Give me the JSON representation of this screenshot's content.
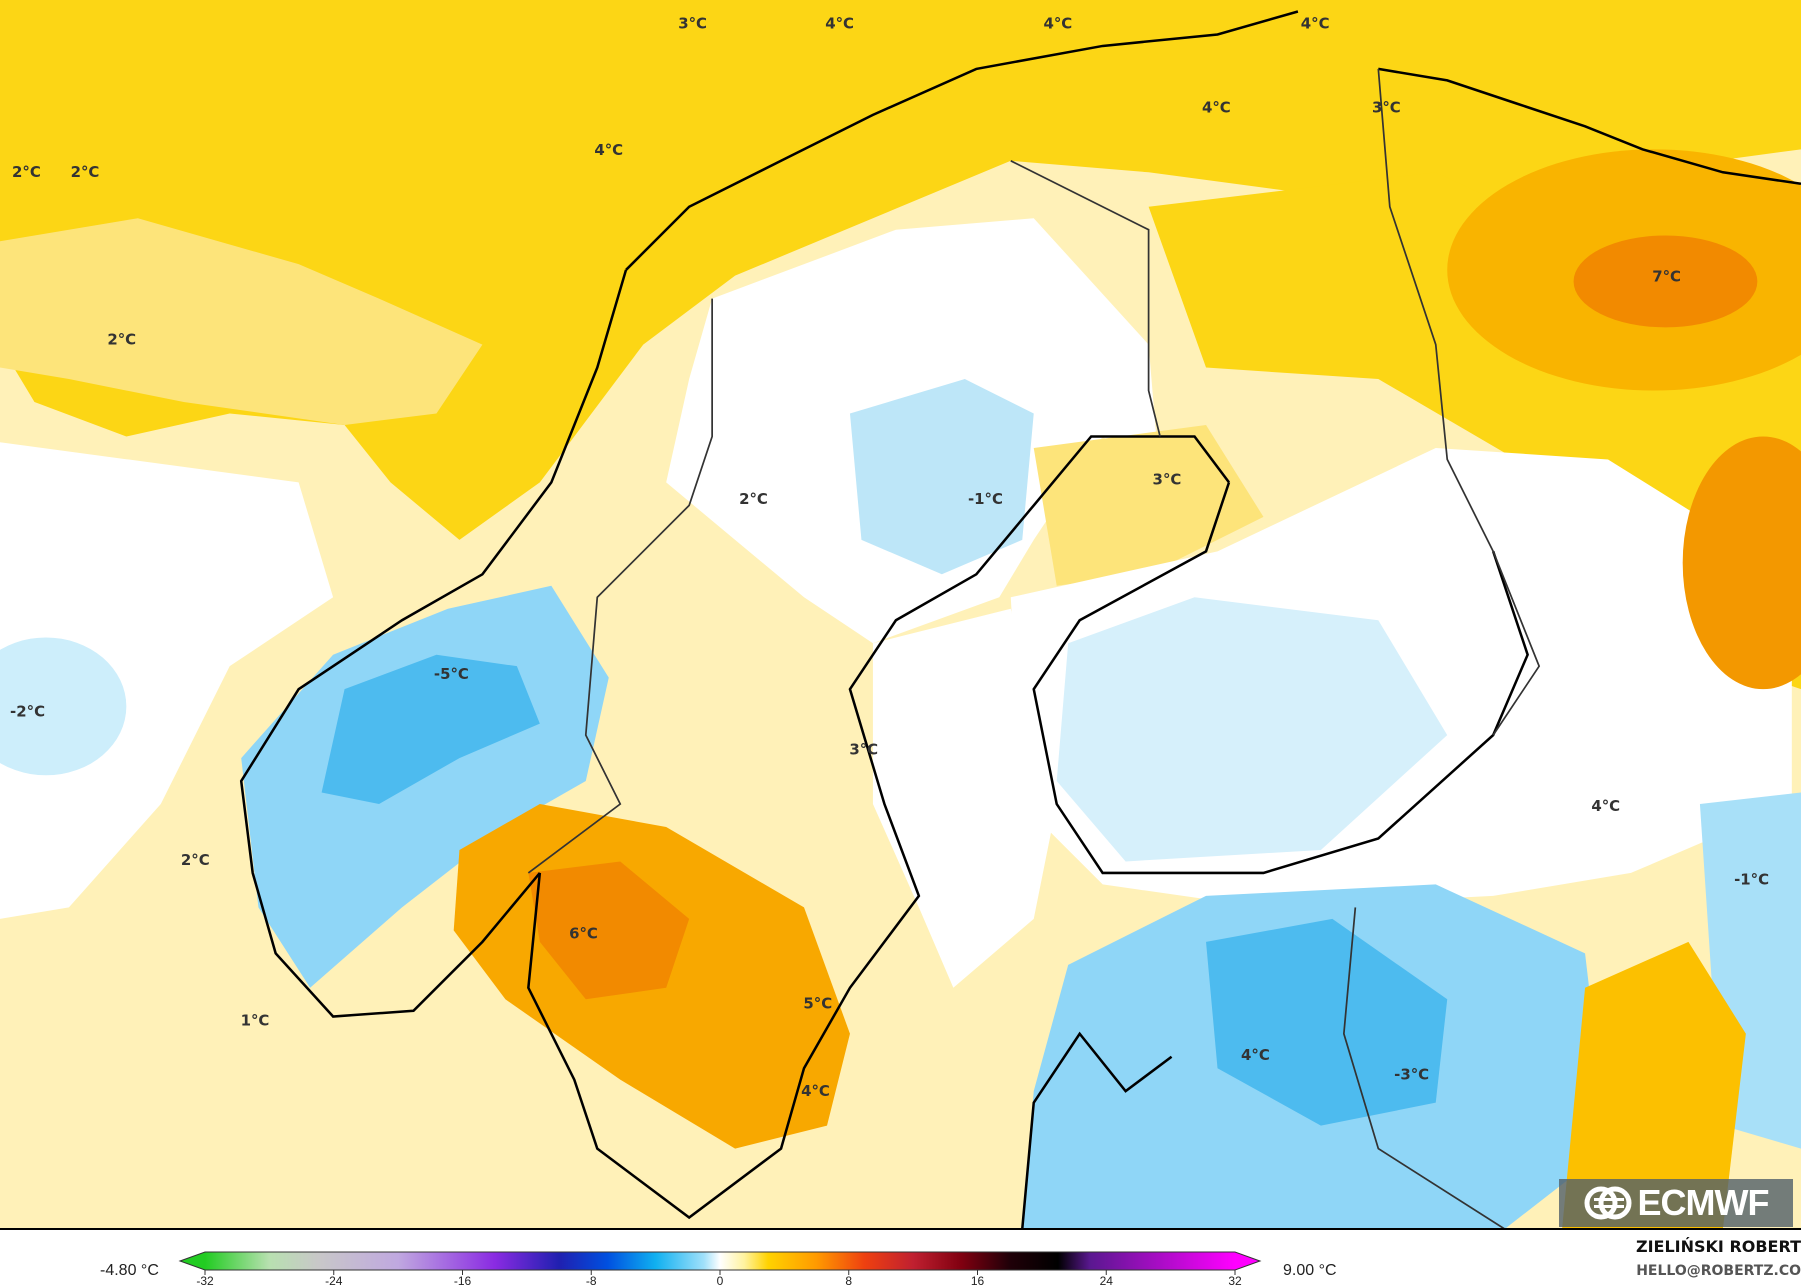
{
  "map": {
    "model": "ECMWF",
    "colors": {
      "pale_yellow": "#fff1b8",
      "yellow": "#fcd615",
      "light_yellow": "#fde47a",
      "orange": "#f8a800",
      "dark_orange": "#f28a00",
      "white": "#ffffff",
      "light_blue": "#cdeefb",
      "blue": "#7fd0f5",
      "mid_blue": "#49b8ef"
    },
    "temperature_labels": [
      {
        "text": "3°C"
      },
      {
        "text": "4°C"
      },
      {
        "text": "4°C"
      },
      {
        "text": "4°C"
      },
      {
        "text": "4°C"
      },
      {
        "text": "3°C"
      },
      {
        "text": "4°C"
      },
      {
        "text": "2°C"
      },
      {
        "text": "2°C"
      },
      {
        "text": "2°C"
      },
      {
        "text": "7°C"
      },
      {
        "text": "2°C"
      },
      {
        "text": "-1°C"
      },
      {
        "text": "3°C"
      },
      {
        "text": "-5°C"
      },
      {
        "text": "-2°C"
      },
      {
        "text": "3°C"
      },
      {
        "text": "4°C"
      },
      {
        "text": "2°C"
      },
      {
        "text": "-1°C"
      },
      {
        "text": "6°C"
      },
      {
        "text": "1°C"
      },
      {
        "text": "5°C"
      },
      {
        "text": "4°C"
      },
      {
        "text": "-3°C"
      },
      {
        "text": "4°C"
      }
    ]
  },
  "logo": {
    "text": "ECMWF",
    "icon": "ecmwf-logo-icon"
  },
  "legend": {
    "min_label": "-4.80 °C",
    "max_label": "9.00 °C",
    "ticks": [
      "-32",
      "-24",
      "-16",
      "-8",
      "0",
      "8",
      "16",
      "24",
      "32"
    ],
    "range": [
      -32,
      32
    ],
    "color_stops": [
      {
        "v": -32,
        "c": "#22cc22"
      },
      {
        "v": -28,
        "c": "#b8e0b0"
      },
      {
        "v": -25,
        "c": "#c8c8c8"
      },
      {
        "v": -20,
        "c": "#c0a8e0"
      },
      {
        "v": -14,
        "c": "#8a2be2"
      },
      {
        "v": -10,
        "c": "#2020b0"
      },
      {
        "v": -7,
        "c": "#0050e0"
      },
      {
        "v": -4,
        "c": "#10b0f0"
      },
      {
        "v": -1,
        "c": "#a0e0fa"
      },
      {
        "v": 0,
        "c": "#ffffff"
      },
      {
        "v": 1.5,
        "c": "#fff3a0"
      },
      {
        "v": 3,
        "c": "#ffd200"
      },
      {
        "v": 6,
        "c": "#ff9a00"
      },
      {
        "v": 9,
        "c": "#ee4010"
      },
      {
        "v": 12,
        "c": "#c02030"
      },
      {
        "v": 15,
        "c": "#800010"
      },
      {
        "v": 18,
        "c": "#200008"
      },
      {
        "v": 21,
        "c": "#000000"
      },
      {
        "v": 23,
        "c": "#5a1890"
      },
      {
        "v": 32,
        "c": "#ff00ff"
      }
    ]
  },
  "credit": {
    "name": "ZIELIŃSKI ROBERT",
    "email": "HELLO@ROBERTZ.CO"
  }
}
